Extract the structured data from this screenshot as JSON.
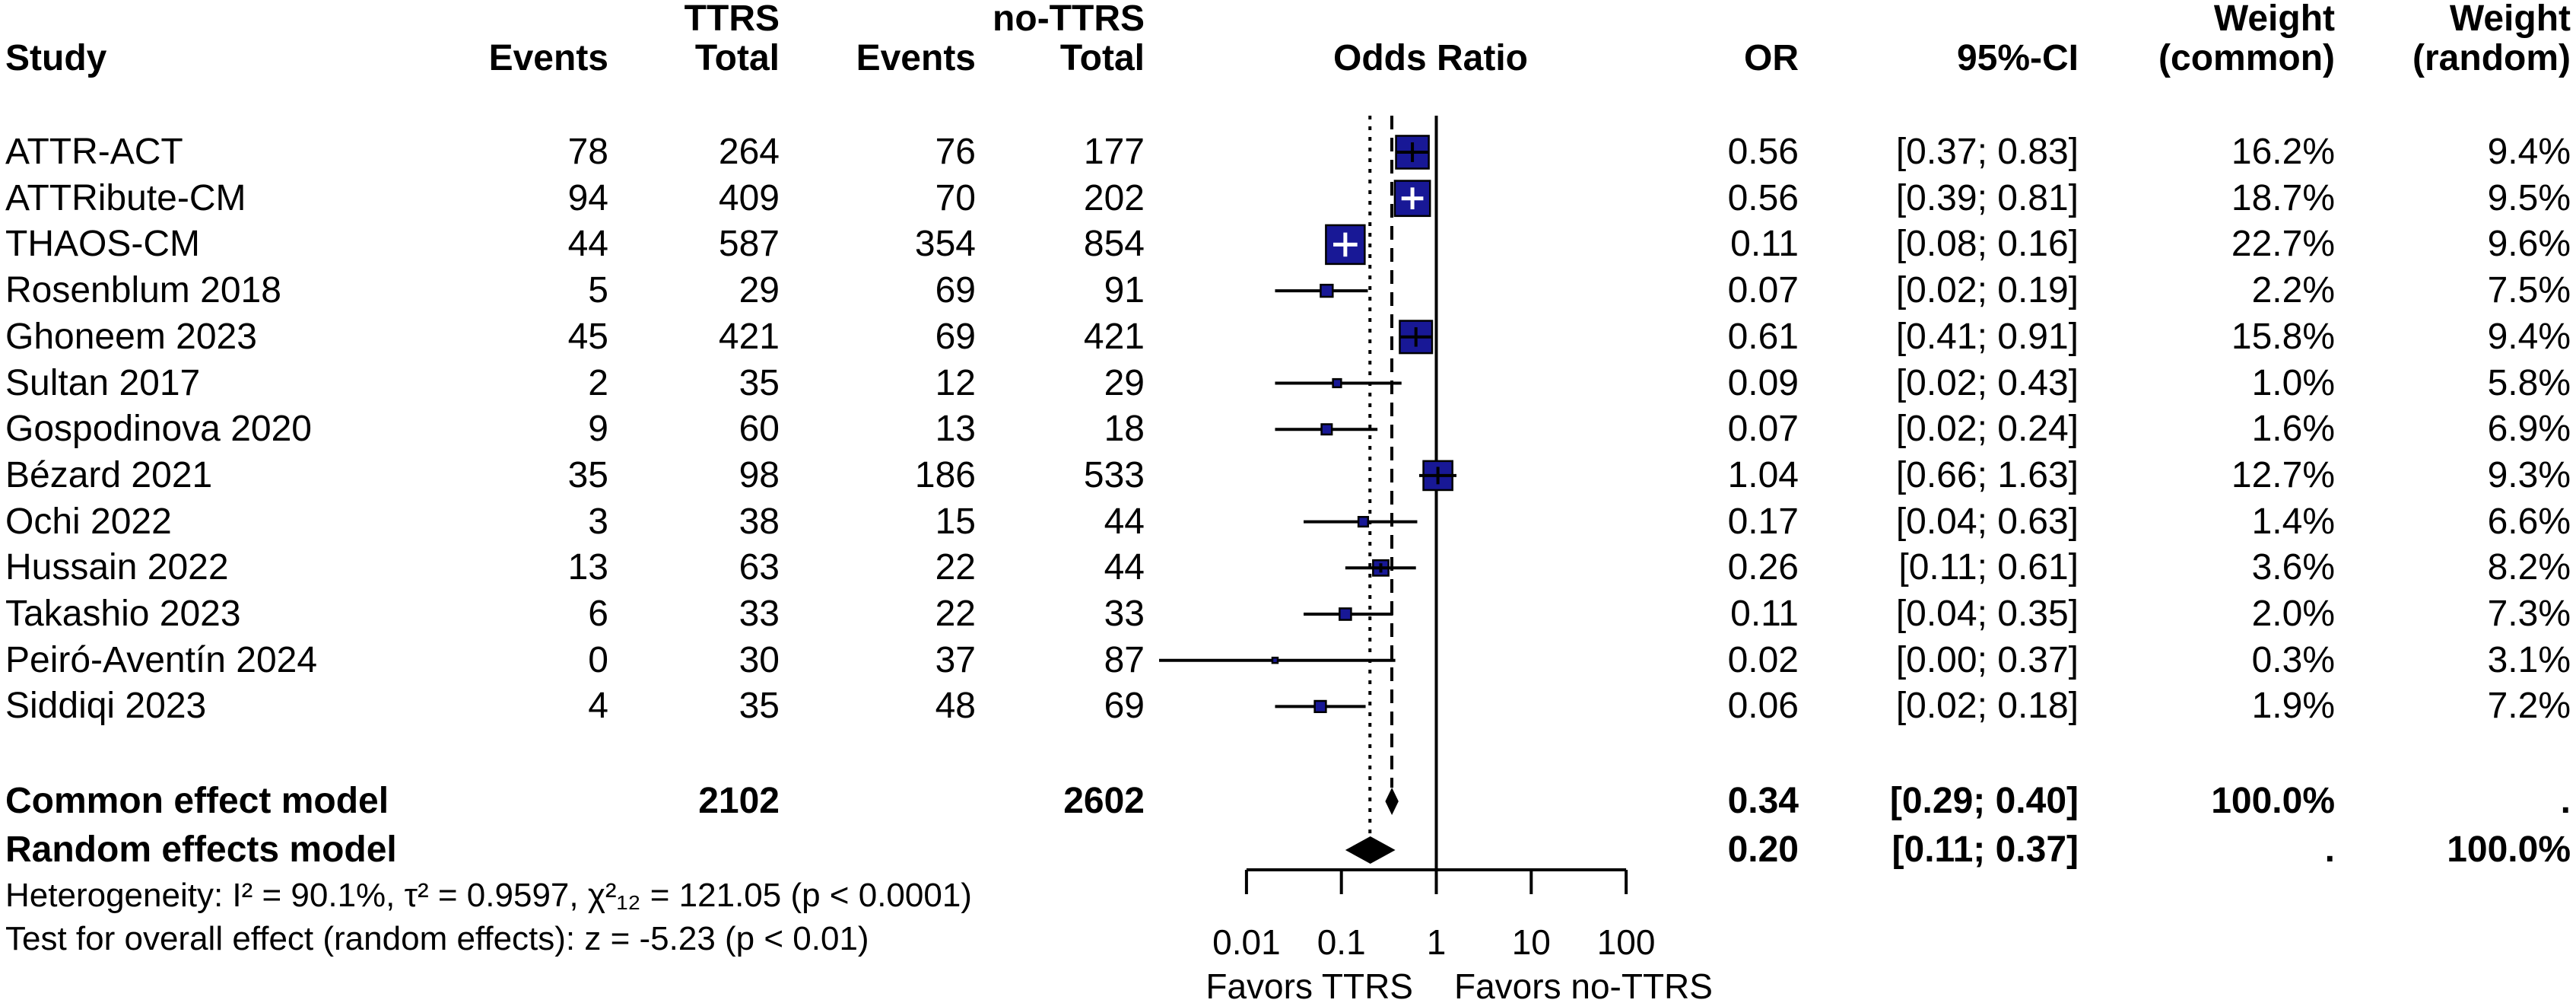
{
  "chart_data": {
    "type": "forest",
    "scale": "log",
    "header": {
      "group_ttrs": "TTRS",
      "group_nottrs": "no-TTRS",
      "study": "Study",
      "events1": "Events",
      "total1": "Total",
      "events2": "Events",
      "total2": "Total",
      "odds_ratio": "Odds Ratio",
      "or": "OR",
      "ci": "95%-CI",
      "weight1_line1": "Weight",
      "weight1_line2": "(common)",
      "weight2_line1": "Weight",
      "weight2_line2": "(random)"
    },
    "studies": [
      {
        "study": "ATTR-ACT",
        "events_ttrs": "78",
        "total_ttrs": "264",
        "events_nottrs": "76",
        "total_nottrs": "177",
        "or": 0.56,
        "ci_low": 0.37,
        "ci_high": 0.83,
        "ci_label": "[0.37; 0.83]",
        "weight_common": 16.2,
        "weight_common_label": "16.2%",
        "weight_random_label": "9.4%"
      },
      {
        "study": "ATTRibute-CM",
        "events_ttrs": "94",
        "total_ttrs": "409",
        "events_nottrs": "70",
        "total_nottrs": "202",
        "or": 0.56,
        "ci_low": 0.39,
        "ci_high": 0.81,
        "ci_label": "[0.39; 0.81]",
        "weight_common": 18.7,
        "weight_common_label": "18.7%",
        "weight_random_label": "9.5%"
      },
      {
        "study": "THAOS-CM",
        "events_ttrs": "44",
        "total_ttrs": "587",
        "events_nottrs": "354",
        "total_nottrs": "854",
        "or": 0.11,
        "ci_low": 0.08,
        "ci_high": 0.16,
        "ci_label": "[0.08; 0.16]",
        "weight_common": 22.7,
        "weight_common_label": "22.7%",
        "weight_random_label": "9.6%"
      },
      {
        "study": "Rosenblum 2018",
        "events_ttrs": "5",
        "total_ttrs": "29",
        "events_nottrs": "69",
        "total_nottrs": "91",
        "or": 0.07,
        "ci_low": 0.02,
        "ci_high": 0.19,
        "ci_label": "[0.02; 0.19]",
        "weight_common": 2.2,
        "weight_common_label": "2.2%",
        "weight_random_label": "7.5%"
      },
      {
        "study": "Ghoneem 2023",
        "events_ttrs": "45",
        "total_ttrs": "421",
        "events_nottrs": "69",
        "total_nottrs": "421",
        "or": 0.61,
        "ci_low": 0.41,
        "ci_high": 0.91,
        "ci_label": "[0.41; 0.91]",
        "weight_common": 15.8,
        "weight_common_label": "15.8%",
        "weight_random_label": "9.4%"
      },
      {
        "study": "Sultan 2017",
        "events_ttrs": "2",
        "total_ttrs": "35",
        "events_nottrs": "12",
        "total_nottrs": "29",
        "or": 0.09,
        "ci_low": 0.02,
        "ci_high": 0.43,
        "ci_label": "[0.02; 0.43]",
        "weight_common": 1.0,
        "weight_common_label": "1.0%",
        "weight_random_label": "5.8%"
      },
      {
        "study": "Gospodinova 2020",
        "events_ttrs": "9",
        "total_ttrs": "60",
        "events_nottrs": "13",
        "total_nottrs": "18",
        "or": 0.07,
        "ci_low": 0.02,
        "ci_high": 0.24,
        "ci_label": "[0.02; 0.24]",
        "weight_common": 1.6,
        "weight_common_label": "1.6%",
        "weight_random_label": "6.9%"
      },
      {
        "study": "Bézard 2021",
        "events_ttrs": "35",
        "total_ttrs": "98",
        "events_nottrs": "186",
        "total_nottrs": "533",
        "or": 1.04,
        "ci_low": 0.66,
        "ci_high": 1.63,
        "ci_label": "[0.66; 1.63]",
        "weight_common": 12.7,
        "weight_common_label": "12.7%",
        "weight_random_label": "9.3%"
      },
      {
        "study": "Ochi 2022",
        "events_ttrs": "3",
        "total_ttrs": "38",
        "events_nottrs": "15",
        "total_nottrs": "44",
        "or": 0.17,
        "ci_low": 0.04,
        "ci_high": 0.63,
        "ci_label": "[0.04; 0.63]",
        "weight_common": 1.4,
        "weight_common_label": "1.4%",
        "weight_random_label": "6.6%"
      },
      {
        "study": "Hussain 2022",
        "events_ttrs": "13",
        "total_ttrs": "63",
        "events_nottrs": "22",
        "total_nottrs": "44",
        "or": 0.26,
        "ci_low": 0.11,
        "ci_high": 0.61,
        "ci_label": "[0.11; 0.61]",
        "weight_common": 3.6,
        "weight_common_label": "3.6%",
        "weight_random_label": "8.2%"
      },
      {
        "study": "Takashio 2023",
        "events_ttrs": "6",
        "total_ttrs": "33",
        "events_nottrs": "22",
        "total_nottrs": "33",
        "or": 0.11,
        "ci_low": 0.04,
        "ci_high": 0.35,
        "ci_label": "[0.04; 0.35]",
        "weight_common": 2.0,
        "weight_common_label": "2.0%",
        "weight_random_label": "7.3%"
      },
      {
        "study": "Peiró-Aventín 2024",
        "events_ttrs": "0",
        "total_ttrs": "30",
        "events_nottrs": "37",
        "total_nottrs": "87",
        "or": 0.02,
        "ci_low": 0.0012,
        "ci_high": 0.37,
        "ci_label": "[0.00; 0.37]",
        "weight_common": 0.3,
        "weight_common_label": "0.3%",
        "weight_random_label": "3.1%"
      },
      {
        "study": "Siddiqi 2023",
        "events_ttrs": "4",
        "total_ttrs": "35",
        "events_nottrs": "48",
        "total_nottrs": "69",
        "or": 0.06,
        "ci_low": 0.02,
        "ci_high": 0.18,
        "ci_label": "[0.02; 0.18]",
        "weight_common": 1.9,
        "weight_common_label": "1.9%",
        "weight_random_label": "7.2%"
      }
    ],
    "common_effect": {
      "label": "Common effect model",
      "total_ttrs": "2102",
      "total_nottrs": "2602",
      "or": 0.34,
      "or_label": "0.34",
      "ci_low": 0.29,
      "ci_high": 0.4,
      "ci_label": "[0.29; 0.40]",
      "weight_common_label": "100.0%",
      "weight_random_label": "."
    },
    "random_effects": {
      "label": "Random effects model",
      "or": 0.2,
      "or_label": "0.20",
      "ci_low": 0.11,
      "ci_high": 0.37,
      "ci_label": "[0.11; 0.37]",
      "weight_common_label": ".",
      "weight_random_label": "100.0%"
    },
    "heterogeneity": "Heterogeneity: I² = 90.1%, τ² = 0.9597, χ²₁₂ = 121.05 (p < 0.0001)",
    "overall_test": "Test for overall effect (random effects): z = -5.23 (p < 0.01)",
    "axis": {
      "ticks": [
        0.01,
        0.1,
        1,
        10,
        100
      ],
      "tick_labels": [
        "0.01",
        "0.1",
        "1",
        "10",
        "100"
      ],
      "ref_line": 1
    },
    "favors_left": "Favors TTRS",
    "favors_right": "Favors no-TTRS",
    "colors": {
      "square": "#181896",
      "diamond": "#000000",
      "line": "#000000",
      "text": "#000000"
    }
  }
}
